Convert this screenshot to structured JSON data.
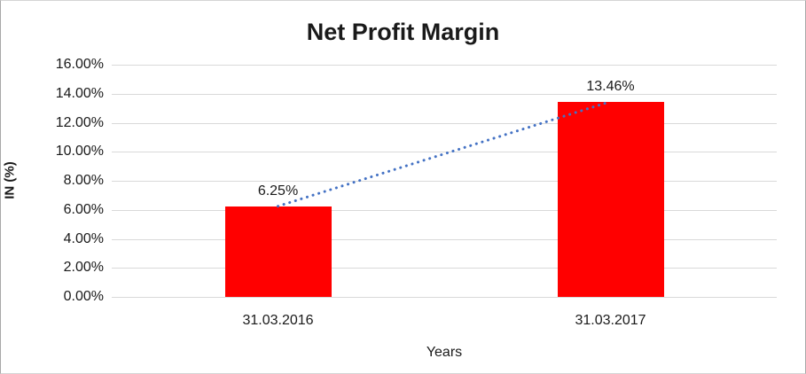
{
  "chart_data": {
    "type": "bar",
    "title": "Net Profit Margin",
    "xlabel": "Years",
    "ylabel": "IN (%)",
    "categories": [
      "31.03.2016",
      "31.03.2017"
    ],
    "values": [
      6.25,
      13.46
    ],
    "data_labels": [
      "6.25%",
      "13.46%"
    ],
    "y_ticks": [
      {
        "value": 0,
        "label": "0.00%"
      },
      {
        "value": 2,
        "label": "2.00%"
      },
      {
        "value": 4,
        "label": "4.00%"
      },
      {
        "value": 6,
        "label": "6.00%"
      },
      {
        "value": 8,
        "label": "8.00%"
      },
      {
        "value": 10,
        "label": "10.00%"
      },
      {
        "value": 12,
        "label": "12.00%"
      },
      {
        "value": 14,
        "label": "14.00%"
      },
      {
        "value": 16,
        "label": "16.00%"
      }
    ],
    "ylim": [
      0,
      16
    ],
    "grid": true,
    "legend_position": "none",
    "bar_color": "#FF0000",
    "gridline_color": "#D9D9D9",
    "trendline": {
      "style": "dotted",
      "color": "#4472C4",
      "from_point": [
        6.25,
        0
      ],
      "to_point": [
        13.46,
        1
      ]
    }
  }
}
